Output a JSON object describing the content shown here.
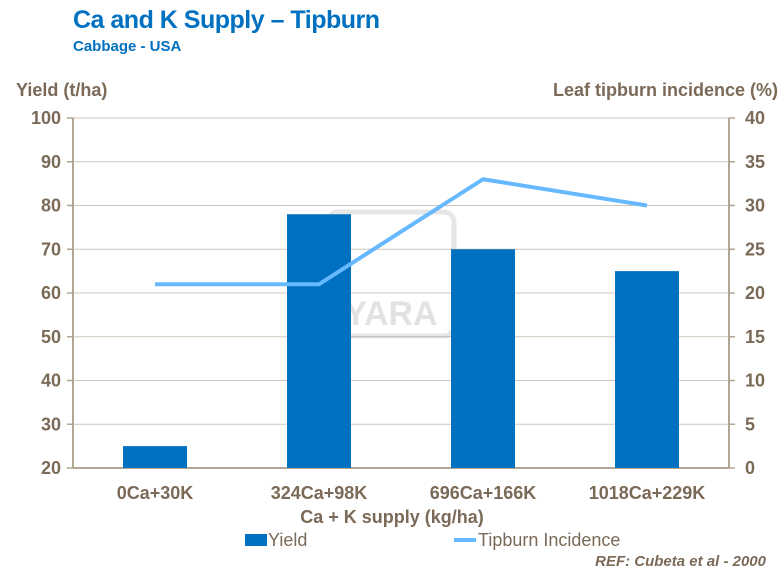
{
  "chart_data": {
    "type": "bar",
    "title": "Ca and K Supply – Tipburn",
    "subtitle": "Cabbage - USA",
    "xlabel": "Ca + K supply (kg/ha)",
    "ylabel": "Yield (t/ha)",
    "y2label": "Leaf tipburn incidence (%)",
    "categories": [
      "0Ca+30K",
      "324Ca+98K",
      "696Ca+166K",
      "1018Ca+229K"
    ],
    "ylim": [
      20,
      100
    ],
    "yticks": [
      20,
      30,
      40,
      50,
      60,
      70,
      80,
      90,
      100
    ],
    "y2lim": [
      0,
      40
    ],
    "y2ticks": [
      0,
      5,
      10,
      15,
      20,
      25,
      30,
      35,
      40
    ],
    "grid": true,
    "series": [
      {
        "name": "Yield",
        "type": "bar",
        "axis": "left",
        "color": "#0070c0",
        "values": [
          25,
          78,
          70,
          65
        ]
      },
      {
        "name": "Tipburn Incidence",
        "type": "line",
        "axis": "right",
        "color": "#66b8ff",
        "values": [
          21,
          21,
          33,
          30
        ]
      }
    ],
    "legend_position": "bottom",
    "reference": "REF: Cubeta et al - 2000",
    "watermark": "YARA"
  }
}
